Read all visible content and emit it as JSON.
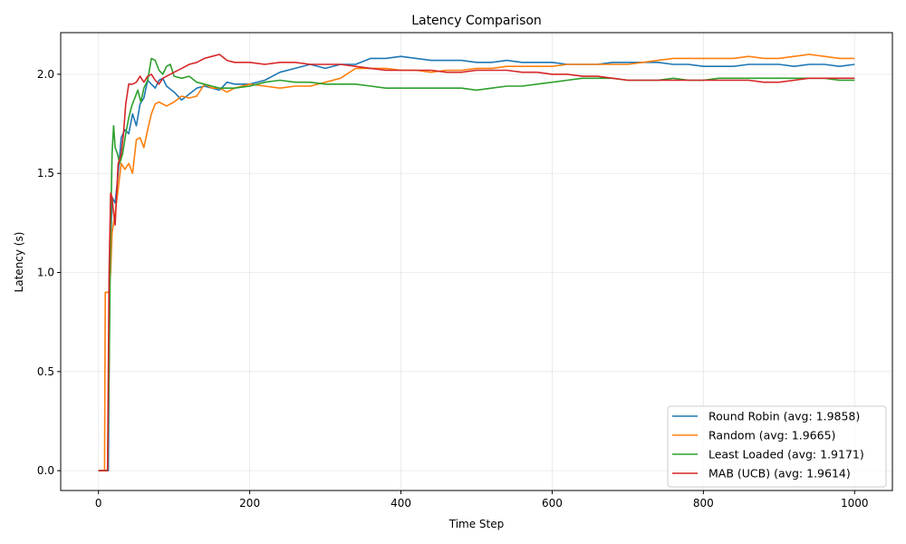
{
  "chart_data": {
    "type": "line",
    "title": "Latency Comparison",
    "xlabel": "Time Step",
    "ylabel": "Latency (s)",
    "xlim": [
      -50,
      1050
    ],
    "ylim": [
      -0.1,
      2.21
    ],
    "xticks": [
      0,
      200,
      400,
      600,
      800,
      1000
    ],
    "xtick_labels": [
      "0",
      "200",
      "400",
      "600",
      "800",
      "1000"
    ],
    "yticks": [
      0.0,
      0.5,
      1.0,
      1.5,
      2.0
    ],
    "ytick_labels": [
      "0.0",
      "0.5",
      "1.0",
      "1.5",
      "2.0"
    ],
    "grid": true,
    "legend_position": "lower-right",
    "series": [
      {
        "name": "Round Robin (avg: 1.9858)",
        "color": "#1f77b4",
        "x": [
          0,
          10,
          13,
          15,
          18,
          22,
          26,
          30,
          35,
          40,
          45,
          50,
          55,
          60,
          65,
          70,
          75,
          80,
          85,
          90,
          100,
          110,
          120,
          130,
          140,
          150,
          160,
          170,
          180,
          200,
          220,
          240,
          260,
          280,
          300,
          320,
          340,
          360,
          380,
          400,
          420,
          440,
          460,
          480,
          500,
          520,
          540,
          560,
          580,
          600,
          620,
          640,
          660,
          680,
          700,
          720,
          740,
          760,
          780,
          800,
          820,
          840,
          860,
          880,
          900,
          920,
          940,
          960,
          980,
          1000
        ],
        "y": [
          0.0,
          0.0,
          0.0,
          1.0,
          1.38,
          1.35,
          1.5,
          1.68,
          1.72,
          1.7,
          1.8,
          1.74,
          1.85,
          1.88,
          1.97,
          1.95,
          1.93,
          1.97,
          1.98,
          1.94,
          1.91,
          1.87,
          1.9,
          1.93,
          1.94,
          1.93,
          1.92,
          1.96,
          1.95,
          1.95,
          1.97,
          2.01,
          2.03,
          2.05,
          2.03,
          2.05,
          2.05,
          2.08,
          2.08,
          2.09,
          2.08,
          2.07,
          2.07,
          2.07,
          2.06,
          2.06,
          2.07,
          2.06,
          2.06,
          2.06,
          2.05,
          2.05,
          2.05,
          2.06,
          2.06,
          2.06,
          2.06,
          2.05,
          2.05,
          2.04,
          2.04,
          2.04,
          2.05,
          2.05,
          2.05,
          2.04,
          2.05,
          2.05,
          2.04,
          2.05
        ]
      },
      {
        "name": "Random (avg: 1.9665)",
        "color": "#ff7f0e",
        "x": [
          0,
          8,
          9,
          12,
          14,
          16,
          18,
          22,
          26,
          30,
          35,
          40,
          45,
          50,
          55,
          60,
          65,
          70,
          75,
          80,
          90,
          100,
          110,
          120,
          130,
          140,
          150,
          160,
          170,
          180,
          200,
          220,
          240,
          260,
          280,
          300,
          320,
          340,
          360,
          380,
          400,
          420,
          440,
          460,
          480,
          500,
          520,
          540,
          560,
          580,
          600,
          620,
          640,
          660,
          680,
          700,
          720,
          740,
          760,
          780,
          800,
          820,
          840,
          860,
          880,
          900,
          920,
          940,
          960,
          980,
          1000
        ],
        "y": [
          0.0,
          0.0,
          0.9,
          0.9,
          0.9,
          1.0,
          1.2,
          1.3,
          1.42,
          1.55,
          1.52,
          1.55,
          1.5,
          1.67,
          1.68,
          1.63,
          1.72,
          1.8,
          1.85,
          1.86,
          1.84,
          1.86,
          1.89,
          1.88,
          1.89,
          1.95,
          1.93,
          1.93,
          1.91,
          1.93,
          1.95,
          1.94,
          1.93,
          1.94,
          1.94,
          1.96,
          1.98,
          2.03,
          2.03,
          2.03,
          2.02,
          2.02,
          2.01,
          2.02,
          2.02,
          2.03,
          2.03,
          2.04,
          2.04,
          2.04,
          2.04,
          2.05,
          2.05,
          2.05,
          2.05,
          2.05,
          2.06,
          2.07,
          2.08,
          2.08,
          2.08,
          2.08,
          2.08,
          2.09,
          2.08,
          2.08,
          2.09,
          2.1,
          2.09,
          2.08,
          2.08
        ]
      },
      {
        "name": "Least Loaded (avg: 1.9171)",
        "color": "#2ca02c",
        "x": [
          0,
          12,
          14,
          16,
          18,
          20,
          22,
          25,
          28,
          32,
          36,
          40,
          44,
          48,
          52,
          56,
          60,
          65,
          70,
          75,
          80,
          85,
          90,
          95,
          100,
          110,
          120,
          130,
          140,
          150,
          160,
          170,
          180,
          200,
          220,
          240,
          260,
          280,
          300,
          320,
          340,
          360,
          380,
          400,
          420,
          440,
          460,
          480,
          500,
          520,
          540,
          560,
          580,
          600,
          620,
          640,
          660,
          680,
          700,
          720,
          740,
          760,
          780,
          800,
          820,
          840,
          860,
          880,
          900,
          920,
          940,
          960,
          980,
          1000
        ],
        "y": [
          0.0,
          0.0,
          0.5,
          1.2,
          1.6,
          1.74,
          1.63,
          1.6,
          1.55,
          1.6,
          1.7,
          1.78,
          1.84,
          1.88,
          1.92,
          1.86,
          1.93,
          1.97,
          2.08,
          2.07,
          2.02,
          2.0,
          2.04,
          2.05,
          1.99,
          1.98,
          1.99,
          1.96,
          1.95,
          1.94,
          1.93,
          1.93,
          1.93,
          1.94,
          1.96,
          1.97,
          1.96,
          1.96,
          1.95,
          1.95,
          1.95,
          1.94,
          1.93,
          1.93,
          1.93,
          1.93,
          1.93,
          1.93,
          1.92,
          1.93,
          1.94,
          1.94,
          1.95,
          1.96,
          1.97,
          1.98,
          1.98,
          1.98,
          1.97,
          1.97,
          1.97,
          1.98,
          1.97,
          1.97,
          1.98,
          1.98,
          1.98,
          1.98,
          1.98,
          1.98,
          1.98,
          1.98,
          1.97,
          1.97
        ]
      },
      {
        "name": "MAB (UCB) (avg: 1.9614)",
        "color": "#d62728",
        "x": [
          0,
          12,
          14,
          16,
          18,
          20,
          22,
          24,
          26,
          28,
          30,
          33,
          36,
          40,
          45,
          50,
          55,
          60,
          65,
          70,
          75,
          80,
          85,
          90,
          95,
          100,
          110,
          120,
          130,
          140,
          150,
          160,
          170,
          180,
          200,
          220,
          240,
          260,
          280,
          300,
          320,
          340,
          360,
          380,
          400,
          420,
          440,
          460,
          480,
          500,
          520,
          540,
          560,
          580,
          600,
          620,
          640,
          660,
          680,
          700,
          720,
          740,
          760,
          780,
          800,
          820,
          840,
          860,
          880,
          900,
          920,
          940,
          960,
          980,
          1000
        ],
        "y": [
          0.0,
          0.0,
          1.0,
          1.4,
          1.38,
          1.3,
          1.24,
          1.4,
          1.55,
          1.57,
          1.6,
          1.7,
          1.85,
          1.95,
          1.95,
          1.96,
          1.99,
          1.96,
          1.99,
          2.0,
          1.97,
          1.95,
          1.98,
          1.99,
          2.0,
          2.01,
          2.03,
          2.05,
          2.06,
          2.08,
          2.09,
          2.1,
          2.07,
          2.06,
          2.06,
          2.05,
          2.06,
          2.06,
          2.05,
          2.05,
          2.05,
          2.04,
          2.03,
          2.02,
          2.02,
          2.02,
          2.02,
          2.01,
          2.01,
          2.02,
          2.02,
          2.02,
          2.01,
          2.01,
          2.0,
          2.0,
          1.99,
          1.99,
          1.98,
          1.97,
          1.97,
          1.97,
          1.97,
          1.97,
          1.97,
          1.97,
          1.97,
          1.97,
          1.96,
          1.96,
          1.97,
          1.98,
          1.98,
          1.98,
          1.98
        ]
      }
    ]
  }
}
